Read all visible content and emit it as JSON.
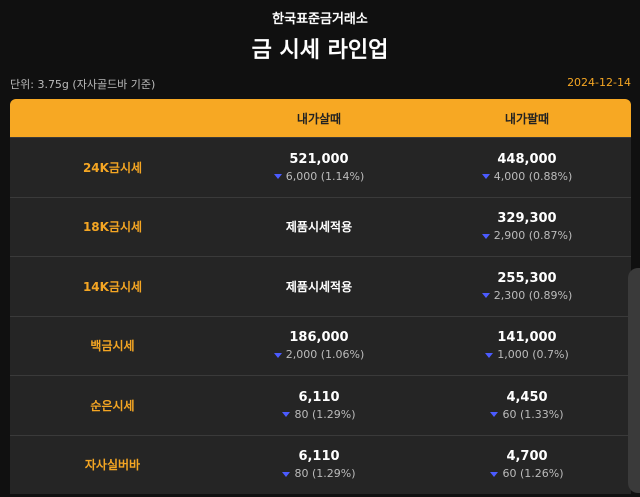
{
  "header": {
    "subtitle": "한국표준금거래소",
    "title": "금 시세 라인업"
  },
  "unit": "단위: 3.75g (자사골드바 기준)",
  "date": "2024-12-14",
  "table": {
    "columns": [
      "내가살때",
      "내가팔때"
    ],
    "rows": [
      {
        "label": "24K금시세",
        "buy": {
          "price": "521,000",
          "change": "6,000 (1.14%)"
        },
        "sell": {
          "price": "448,000",
          "change": "4,000 (0.88%)"
        }
      },
      {
        "label": "18K금시세",
        "buy": {
          "text": "제품시세적용"
        },
        "sell": {
          "price": "329,300",
          "change": "2,900 (0.87%)"
        }
      },
      {
        "label": "14K금시세",
        "buy": {
          "text": "제품시세적용"
        },
        "sell": {
          "price": "255,300",
          "change": "2,300 (0.89%)"
        }
      },
      {
        "label": "백금시세",
        "buy": {
          "price": "186,000",
          "change": "2,000 (1.06%)"
        },
        "sell": {
          "price": "141,000",
          "change": "1,000 (0.7%)"
        }
      },
      {
        "label": "순은시세",
        "buy": {
          "price": "6,110",
          "change": "80 (1.29%)"
        },
        "sell": {
          "price": "4,450",
          "change": "60 (1.33%)"
        }
      },
      {
        "label": "자사실버바",
        "buy": {
          "price": "6,110",
          "change": "80 (1.29%)"
        },
        "sell": {
          "price": "4,700",
          "change": "60 (1.26%)"
        }
      }
    ]
  }
}
